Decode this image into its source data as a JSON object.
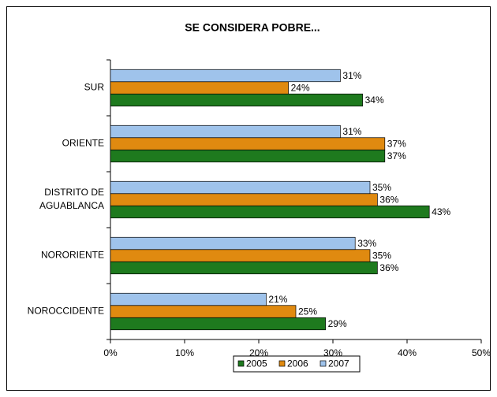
{
  "chart_data": {
    "type": "bar",
    "orientation": "horizontal",
    "title": "SE CONSIDERA POBRE...",
    "categories": [
      "SUR",
      "ORIENTE",
      "DISTRITO DE\nAGUABLANCA",
      "NORORIENTE",
      "NOROCCIDENTE"
    ],
    "series": [
      {
        "name": "2005",
        "color": "#1e7a1e",
        "values": [
          34,
          37,
          43,
          36,
          29
        ],
        "value_labels": [
          "34%",
          "37%",
          "43%",
          "36%",
          "29%"
        ]
      },
      {
        "name": "2006",
        "color": "#e08a10",
        "values": [
          24,
          37,
          36,
          35,
          25
        ],
        "value_labels": [
          "24%",
          "37%",
          "36%",
          "35%",
          "25%"
        ]
      },
      {
        "name": "2007",
        "color": "#9fc3eb",
        "values": [
          31,
          31,
          35,
          33,
          21
        ],
        "value_labels": [
          "31%",
          "31%",
          "35%",
          "33%",
          "21%"
        ]
      }
    ],
    "xlim": [
      0,
      50
    ],
    "xticks": [
      {
        "value": 0,
        "label": "0%"
      },
      {
        "value": 10,
        "label": "10%"
      },
      {
        "value": 20,
        "label": "20%"
      },
      {
        "value": 30,
        "label": "30%"
      },
      {
        "value": 40,
        "label": "40%"
      },
      {
        "value": 50,
        "label": "50%"
      }
    ],
    "grid": false,
    "legend": "bottom"
  }
}
